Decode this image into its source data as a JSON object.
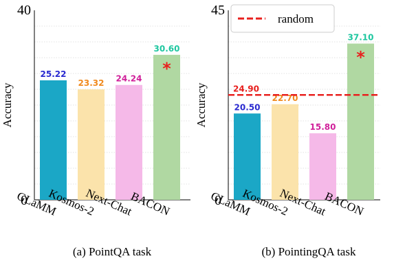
{
  "chart_data": [
    {
      "type": "bar",
      "title": "(a) PointQA task",
      "ylabel": "Accuracy",
      "ylim": [
        0,
        40
      ],
      "yticks": [
        "0",
        "40"
      ],
      "grid": "horizontal dotted",
      "categories": [
        "GLaMM",
        "Kosmos-2",
        "Next-Chat",
        "BACON"
      ],
      "values": [
        25.22,
        23.32,
        24.24,
        30.6
      ],
      "value_labels": [
        "25.22",
        "23.32",
        "24.24",
        "30.60"
      ],
      "bar_colors": [
        "#1ba7c6",
        "#fbe3ab",
        "#f5b9e8",
        "#b0d8a2"
      ],
      "label_colors": [
        "#2a2ad0",
        "#f08a1e",
        "#d0209a",
        "#1fc7a0"
      ],
      "highlight": {
        "category": "BACON",
        "marker": "*",
        "color": "#e8201e"
      }
    },
    {
      "type": "bar",
      "title": "(b) PointingQA task",
      "ylabel": "Accuracy",
      "ylim": [
        0,
        45
      ],
      "yticks": [
        "0",
        "45"
      ],
      "grid": "horizontal dotted",
      "categories": [
        "GLaMM",
        "Kosmos-2",
        "Next-Chat",
        "BACON"
      ],
      "values": [
        20.5,
        22.7,
        15.8,
        37.1
      ],
      "value_labels": [
        "20.50",
        "22.70",
        "15.80",
        "37.10"
      ],
      "bar_colors": [
        "#1ba7c6",
        "#fbe3ab",
        "#f5b9e8",
        "#b0d8a2"
      ],
      "label_colors": [
        "#2a2ad0",
        "#f08a1e",
        "#d0209a",
        "#1fc7a0"
      ],
      "highlight": {
        "category": "BACON",
        "marker": "*",
        "color": "#e8201e"
      },
      "reference_line": {
        "name": "random",
        "value": 24.9,
        "label": "24.90",
        "color": "#e8201e",
        "style": "dashed"
      },
      "legend": {
        "position": "top-left",
        "entries": [
          "random"
        ]
      }
    }
  ]
}
